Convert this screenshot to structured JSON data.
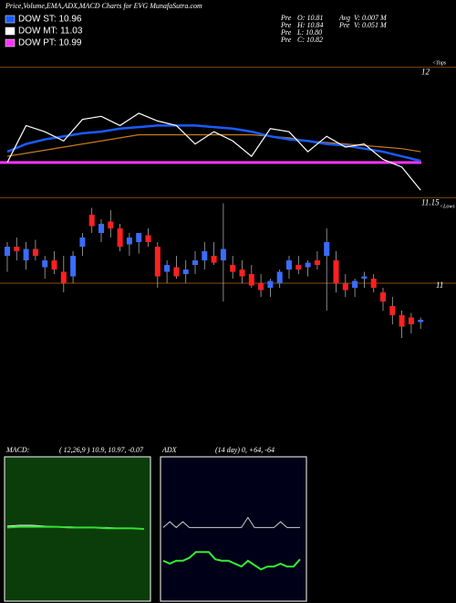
{
  "header": {
    "title": "Price,Volume,EMA,ADX,MACD Charts for EVG MunafaSutra.com",
    "legend": [
      {
        "label": "DOW ST: 10.96",
        "color": "#1a5cff"
      },
      {
        "label": "DOW MT: 11.03",
        "color": "#ffffff"
      },
      {
        "label": "DOW PT: 10.99",
        "color": "#ff33ff"
      }
    ],
    "info": [
      [
        "Pre",
        "O: 10.81"
      ],
      [
        "Pre",
        "H: 10.84"
      ],
      [
        "Pre",
        "L: 10.80"
      ],
      [
        "Pre",
        "C: 10.82"
      ]
    ],
    "info2": [
      [
        "Avg",
        "V: 0.007 M"
      ],
      [
        "Pre",
        "V: 0.051 M"
      ]
    ],
    "tops": "<Tops",
    "lows": "<Lows"
  },
  "chart_data": [
    {
      "type": "line",
      "ylim": [
        11.07,
        12.08
      ],
      "yticks": [
        12,
        11.15
      ],
      "level": 11.38,
      "level_color": "#ff33ff",
      "x": [
        0,
        2,
        4,
        6,
        8,
        10,
        12,
        14,
        16,
        18,
        20,
        22,
        24,
        26,
        28,
        30,
        32,
        34,
        36,
        38,
        40,
        42,
        44
      ],
      "series": [
        {
          "color": "#c87a1e",
          "values": [
            11.42,
            11.44,
            11.46,
            11.48,
            11.5,
            11.52,
            11.54,
            11.56,
            11.56,
            11.56,
            11.56,
            11.56,
            11.56,
            11.56,
            11.55,
            11.54,
            11.52,
            11.51,
            11.5,
            11.49,
            11.48,
            11.47,
            11.45
          ]
        },
        {
          "color": "#1a5cff",
          "values": [
            11.45,
            11.5,
            11.53,
            11.55,
            11.57,
            11.58,
            11.6,
            11.61,
            11.62,
            11.62,
            11.62,
            11.61,
            11.6,
            11.58,
            11.55,
            11.53,
            11.52,
            11.5,
            11.49,
            11.47,
            11.45,
            11.42,
            11.39
          ]
        },
        {
          "color": "#ffffff",
          "values": [
            11.38,
            11.62,
            11.58,
            11.52,
            11.66,
            11.68,
            11.62,
            11.7,
            11.65,
            11.62,
            11.5,
            11.58,
            11.52,
            11.42,
            11.6,
            11.58,
            11.45,
            11.55,
            11.48,
            11.5,
            11.4,
            11.35,
            11.2
          ]
        }
      ]
    },
    {
      "type": "candlestick",
      "ylim": [
        10.64,
        11.44
      ],
      "yticks": [
        11
      ],
      "up_color": "#3a6cff",
      "down_color": "#ff2020",
      "open": [
        11.12,
        11.16,
        11.1,
        11.15,
        11.07,
        11.1,
        11.05,
        11.03,
        11.16,
        11.3,
        11.22,
        11.27,
        11.24,
        11.17,
        11.18,
        11.21,
        11.16,
        11.05,
        11.07,
        11.04,
        11.08,
        11.1,
        11.12,
        11.1,
        11.08,
        11.06,
        11.04,
        11.0,
        10.98,
        11.0,
        11.06,
        11.08,
        11.07,
        11.1,
        11.12,
        11.1,
        11.0,
        10.98,
        11.02,
        11.02,
        10.96,
        10.9,
        10.86,
        10.85,
        10.83
      ],
      "high": [
        11.18,
        11.2,
        11.18,
        11.19,
        11.12,
        11.14,
        11.12,
        11.14,
        11.22,
        11.33,
        11.28,
        11.32,
        11.26,
        11.22,
        11.22,
        11.24,
        11.18,
        11.1,
        11.12,
        11.1,
        11.14,
        11.18,
        11.18,
        11.35,
        11.12,
        11.1,
        11.08,
        11.04,
        11.02,
        11.06,
        11.12,
        11.12,
        11.1,
        11.14,
        11.24,
        11.14,
        11.04,
        11.02,
        11.05,
        11.04,
        10.98,
        10.94,
        10.88,
        10.87,
        10.85
      ],
      "low": [
        11.05,
        11.1,
        11.06,
        11.1,
        11.02,
        11.04,
        10.96,
        11.0,
        11.12,
        11.22,
        11.18,
        11.2,
        11.14,
        11.12,
        11.13,
        11.16,
        10.98,
        11.0,
        11.02,
        11.0,
        11.04,
        11.06,
        11.08,
        10.92,
        11.02,
        11.0,
        10.98,
        10.94,
        10.94,
        10.98,
        11.02,
        11.04,
        11.03,
        11.06,
        10.88,
        10.96,
        10.94,
        10.94,
        10.98,
        10.96,
        10.88,
        10.82,
        10.76,
        10.78,
        10.8
      ],
      "close": [
        11.16,
        11.14,
        11.15,
        11.12,
        11.1,
        11.06,
        11.0,
        11.12,
        11.2,
        11.25,
        11.26,
        11.24,
        11.16,
        11.2,
        11.22,
        11.18,
        11.03,
        11.08,
        11.03,
        11.06,
        11.1,
        11.14,
        11.09,
        11.15,
        11.05,
        11.03,
        10.99,
        10.97,
        11.01,
        11.05,
        11.1,
        11.06,
        11.09,
        11.08,
        11.18,
        11.0,
        10.97,
        11.01,
        11.03,
        10.98,
        10.92,
        10.86,
        10.81,
        10.82,
        10.84
      ]
    },
    {
      "type": "panel",
      "label": "MACD:",
      "params": "( 12,26,9 ) 10.9, 10.97, -0.07",
      "ylim": [
        -1,
        1
      ],
      "bg": "#0b3d0b",
      "series": [
        {
          "color": "#ffffff",
          "values": [
            0.04,
            0.05,
            0.05,
            0.04,
            0.03,
            0.03,
            0.02,
            0.02,
            0.02,
            0.01,
            0.01,
            0.0
          ]
        },
        {
          "color": "#33dd33",
          "values": [
            0.02,
            0.03,
            0.03,
            0.03,
            0.03,
            0.02,
            0.02,
            0.02,
            0.01,
            0.01,
            0.01,
            0.0
          ]
        }
      ]
    },
    {
      "type": "panel",
      "label": "ADX",
      "params": "(14 day) 0, +64, -64",
      "ylim": [
        0,
        100
      ],
      "bg": "#000018",
      "series": [
        {
          "color": "#cccccc",
          "values": [
            51,
            55,
            51,
            55,
            51,
            51,
            51,
            51,
            51,
            51,
            51,
            51,
            51,
            58,
            51,
            51,
            51,
            51,
            55,
            51,
            51,
            51
          ]
        },
        {
          "color": "#33ee33",
          "values": [
            28,
            26,
            28,
            28,
            30,
            34,
            34,
            34,
            29,
            28,
            28,
            26,
            24,
            28,
            25,
            22,
            24,
            24,
            26,
            24,
            24,
            29
          ]
        }
      ]
    }
  ]
}
